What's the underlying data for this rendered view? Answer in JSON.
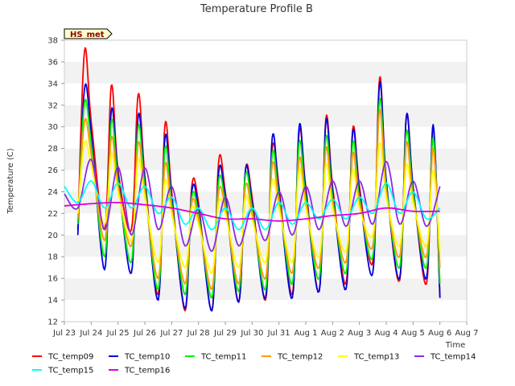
{
  "chart_data": {
    "type": "line",
    "title": "Temperature Profile B",
    "xlabel": "Time",
    "ylabel": "Temperature (C)",
    "annotation": "HS_met",
    "ylim": [
      12,
      38
    ],
    "yticks": [
      12,
      14,
      16,
      18,
      20,
      22,
      24,
      26,
      28,
      30,
      32,
      34,
      36,
      38
    ],
    "xlim": [
      0,
      15
    ],
    "xticks": [
      {
        "x": 0,
        "label": "Jul 23"
      },
      {
        "x": 1,
        "label": "Jul 24"
      },
      {
        "x": 2,
        "label": "Jul 25"
      },
      {
        "x": 3,
        "label": "Jul 26"
      },
      {
        "x": 4,
        "label": "Jul 27"
      },
      {
        "x": 5,
        "label": "Jul 28"
      },
      {
        "x": 6,
        "label": "Jul 29"
      },
      {
        "x": 7,
        "label": "Jul 30"
      },
      {
        "x": 8,
        "label": "Jul 31"
      },
      {
        "x": 9,
        "label": "Aug 1"
      },
      {
        "x": 10,
        "label": "Aug 2"
      },
      {
        "x": 11,
        "label": "Aug 3"
      },
      {
        "x": 12,
        "label": "Aug 4"
      },
      {
        "x": 13,
        "label": "Aug 5"
      },
      {
        "x": 14,
        "label": "Aug 6"
      },
      {
        "x": 15,
        "label": "Aug 7"
      }
    ],
    "grid": "horizontal bands",
    "legend_position": "bottom",
    "series": [
      {
        "name": "TC_temp09",
        "color": "#ff0000",
        "x": [
          0.5,
          0.75,
          1.0,
          1.5,
          1.75,
          2.0,
          2.5,
          2.75,
          3.0,
          3.5,
          3.75,
          4.0,
          4.5,
          4.75,
          5.0,
          5.5,
          5.75,
          6.0,
          6.5,
          6.75,
          7.0,
          7.5,
          7.75,
          8.0,
          8.5,
          8.75,
          9.0,
          9.5,
          9.75,
          10.0,
          10.5,
          10.75,
          11.0,
          11.5,
          11.75,
          12.0,
          12.5,
          12.75,
          13.0,
          13.5,
          13.75,
          14.0
        ],
        "y": [
          20.5,
          37.0,
          30.5,
          20.5,
          33.8,
          26.0,
          20.5,
          33.0,
          25.5,
          14.5,
          30.2,
          24.0,
          13.0,
          24.5,
          23.0,
          13.0,
          26.8,
          24.0,
          13.8,
          26.0,
          23.5,
          14.0,
          28.0,
          24.5,
          14.5,
          29.5,
          24.5,
          14.8,
          30.8,
          24.5,
          15.5,
          29.8,
          24.5,
          17.5,
          34.5,
          25.0,
          15.8,
          31.0,
          24.5,
          15.5,
          30.0,
          14.2
        ]
      },
      {
        "name": "TC_temp10",
        "color": "#0000dd",
        "x": [
          0.5,
          0.75,
          1.0,
          1.5,
          1.75,
          2.0,
          2.5,
          2.75,
          3.0,
          3.5,
          3.75,
          4.0,
          4.5,
          4.75,
          5.0,
          5.5,
          5.75,
          6.0,
          6.5,
          6.75,
          7.0,
          7.5,
          7.75,
          8.0,
          8.5,
          8.75,
          9.0,
          9.5,
          9.75,
          10.0,
          10.5,
          10.75,
          11.0,
          11.5,
          11.75,
          12.0,
          12.5,
          12.75,
          13.0,
          13.5,
          13.75,
          14.0
        ],
        "y": [
          20.0,
          33.5,
          29.5,
          16.8,
          31.5,
          25.5,
          16.5,
          31.0,
          25.0,
          14.0,
          29.0,
          23.5,
          13.2,
          24.0,
          22.5,
          13.0,
          25.8,
          23.5,
          13.8,
          26.0,
          23.0,
          14.2,
          29.0,
          24.0,
          14.2,
          30.0,
          24.0,
          14.8,
          30.5,
          24.0,
          15.0,
          29.5,
          24.0,
          16.5,
          34.0,
          25.0,
          16.0,
          31.0,
          24.5,
          16.0,
          30.2,
          14.2
        ]
      },
      {
        "name": "TC_temp11",
        "color": "#00ee00",
        "x": [
          0.5,
          0.75,
          1.0,
          1.5,
          1.75,
          2.0,
          2.5,
          2.75,
          3.0,
          3.5,
          3.75,
          4.0,
          4.5,
          4.75,
          5.0,
          5.5,
          5.75,
          6.0,
          6.5,
          6.75,
          7.0,
          7.5,
          7.75,
          8.0,
          8.5,
          8.75,
          9.0,
          9.5,
          9.75,
          10.0,
          10.5,
          10.75,
          11.0,
          11.5,
          11.75,
          12.0,
          12.5,
          12.75,
          13.0,
          13.5,
          13.75,
          14.0
        ],
        "y": [
          21.0,
          32.2,
          28.5,
          18.0,
          30.5,
          25.0,
          17.5,
          30.0,
          24.5,
          15.0,
          28.0,
          23.0,
          14.5,
          23.5,
          22.0,
          14.2,
          25.0,
          23.0,
          14.8,
          25.5,
          22.5,
          15.0,
          27.5,
          23.5,
          15.5,
          28.5,
          23.5,
          16.0,
          29.0,
          23.5,
          16.5,
          28.5,
          23.5,
          18.0,
          32.5,
          24.5,
          17.0,
          29.5,
          24.0,
          17.0,
          29.0,
          15.5
        ]
      },
      {
        "name": "TC_temp12",
        "color": "#ff9900",
        "x": [
          0.5,
          0.75,
          1.0,
          1.5,
          1.75,
          2.0,
          2.5,
          2.75,
          3.0,
          3.5,
          3.75,
          4.0,
          4.5,
          4.75,
          5.0,
          5.5,
          5.75,
          6.0,
          6.5,
          6.75,
          7.0,
          7.5,
          7.75,
          8.0,
          8.5,
          8.75,
          9.0,
          9.5,
          9.75,
          10.0,
          10.5,
          10.75,
          11.0,
          11.5,
          11.75,
          12.0,
          12.5,
          12.75,
          13.0,
          13.5,
          13.75,
          14.0
        ],
        "y": [
          21.5,
          30.5,
          27.5,
          19.5,
          29.0,
          24.5,
          19.0,
          28.5,
          24.0,
          16.0,
          26.5,
          22.5,
          15.5,
          23.0,
          21.5,
          15.0,
          24.0,
          22.5,
          15.5,
          24.5,
          22.0,
          16.0,
          26.5,
          23.0,
          16.5,
          27.0,
          23.0,
          17.0,
          28.0,
          23.0,
          17.5,
          27.5,
          23.0,
          19.0,
          31.5,
          24.0,
          18.0,
          28.5,
          23.5,
          18.0,
          28.0,
          17.0
        ]
      },
      {
        "name": "TC_temp13",
        "color": "#ffff00",
        "x": [
          0.5,
          0.75,
          1.0,
          1.5,
          1.75,
          2.0,
          2.5,
          2.75,
          3.0,
          3.5,
          3.75,
          4.0,
          4.5,
          4.75,
          5.0,
          5.5,
          5.75,
          6.0,
          6.5,
          6.75,
          7.0,
          7.5,
          7.75,
          8.0,
          8.5,
          8.75,
          9.0,
          9.5,
          9.75,
          10.0,
          10.5,
          10.75,
          11.0,
          11.5,
          11.75,
          12.0,
          12.5,
          12.75,
          13.0,
          13.5,
          13.75,
          14.0
        ],
        "y": [
          22.0,
          28.5,
          26.5,
          21.0,
          27.5,
          24.0,
          19.5,
          27.0,
          23.5,
          17.5,
          25.0,
          22.0,
          17.0,
          22.5,
          21.0,
          16.5,
          23.0,
          22.0,
          17.0,
          23.5,
          21.5,
          17.5,
          25.0,
          22.5,
          17.5,
          26.0,
          22.5,
          18.0,
          26.5,
          22.5,
          18.5,
          26.0,
          22.5,
          20.0,
          28.5,
          23.5,
          19.0,
          26.5,
          23.0,
          19.0,
          26.0,
          18.5
        ]
      },
      {
        "name": "TC_temp14",
        "color": "#8a2be2",
        "x": [
          0.0,
          0.5,
          1.0,
          1.5,
          2.0,
          2.5,
          3.0,
          3.5,
          4.0,
          4.5,
          5.0,
          5.5,
          6.0,
          6.5,
          7.0,
          7.5,
          8.0,
          8.5,
          9.0,
          9.5,
          10.0,
          10.5,
          11.0,
          11.5,
          12.0,
          12.5,
          13.0,
          13.5,
          14.0
        ],
        "y": [
          23.8,
          22.5,
          27.0,
          20.5,
          26.3,
          20.0,
          26.2,
          20.5,
          24.5,
          19.0,
          22.5,
          18.5,
          23.5,
          19.0,
          22.5,
          19.5,
          24.0,
          20.0,
          24.5,
          20.5,
          25.0,
          20.8,
          25.0,
          21.0,
          26.8,
          21.0,
          25.0,
          20.8,
          24.5
        ]
      },
      {
        "name": "TC_temp15",
        "color": "#00ffff",
        "x": [
          0.0,
          0.5,
          1.0,
          1.5,
          2.0,
          2.5,
          3.0,
          3.5,
          4.0,
          4.5,
          5.0,
          5.5,
          6.0,
          6.5,
          7.0,
          7.5,
          8.0,
          8.5,
          9.0,
          9.5,
          10.0,
          10.5,
          11.0,
          11.5,
          12.0,
          12.5,
          13.0,
          13.5,
          14.0
        ],
        "y": [
          24.5,
          23.0,
          25.0,
          22.5,
          24.8,
          22.5,
          24.5,
          22.0,
          23.5,
          21.0,
          22.5,
          20.5,
          22.5,
          20.5,
          22.5,
          20.5,
          23.0,
          21.0,
          23.0,
          21.5,
          23.3,
          21.5,
          23.5,
          22.0,
          24.8,
          22.0,
          24.0,
          21.5,
          22.5
        ]
      },
      {
        "name": "TC_temp16",
        "color": "#dd00dd",
        "x": [
          0.0,
          1.0,
          2.0,
          3.0,
          4.0,
          5.0,
          6.0,
          7.0,
          8.0,
          9.0,
          10.0,
          11.0,
          12.0,
          13.0,
          14.0
        ],
        "y": [
          22.7,
          22.9,
          23.0,
          22.8,
          22.5,
          22.0,
          21.5,
          21.5,
          21.3,
          21.5,
          21.8,
          22.0,
          22.5,
          22.2,
          22.2
        ]
      }
    ]
  }
}
